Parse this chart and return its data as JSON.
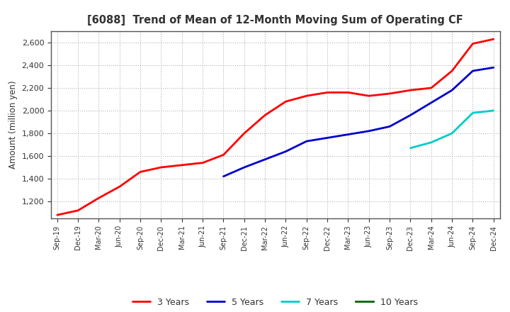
{
  "title": "[6088]  Trend of Mean of 12-Month Moving Sum of Operating CF",
  "ylabel": "Amount (million yen)",
  "background_color": "#ffffff",
  "grid_color": "#888888",
  "series": {
    "3 Years": {
      "color": "#ff0000",
      "x": [
        "Sep-19",
        "Dec-19",
        "Mar-20",
        "Jun-20",
        "Sep-20",
        "Dec-20",
        "Mar-21",
        "Jun-21",
        "Sep-21",
        "Dec-21",
        "Mar-22",
        "Jun-22",
        "Sep-22",
        "Dec-22",
        "Mar-23",
        "Jun-23",
        "Sep-23",
        "Dec-23",
        "Mar-24",
        "Jun-24",
        "Sep-24",
        "Dec-24"
      ],
      "y": [
        1080,
        1120,
        1230,
        1330,
        1460,
        1500,
        1520,
        1540,
        1610,
        1800,
        1960,
        2080,
        2130,
        2160,
        2160,
        2130,
        2150,
        2180,
        2200,
        2350,
        2590,
        2630
      ]
    },
    "5 Years": {
      "color": "#0000cc",
      "x": [
        "Sep-21",
        "Dec-21",
        "Mar-22",
        "Jun-22",
        "Sep-22",
        "Dec-22",
        "Mar-23",
        "Jun-23",
        "Sep-23",
        "Dec-23",
        "Mar-24",
        "Jun-24",
        "Sep-24",
        "Dec-24"
      ],
      "y": [
        1420,
        1500,
        1570,
        1640,
        1730,
        1760,
        1790,
        1820,
        1860,
        1960,
        2070,
        2180,
        2350,
        2380
      ]
    },
    "7 Years": {
      "color": "#00cccc",
      "x": [
        "Dec-23",
        "Mar-24",
        "Jun-24",
        "Sep-24",
        "Dec-24"
      ],
      "y": [
        1670,
        1720,
        1800,
        1980,
        2000
      ]
    },
    "10 Years": {
      "color": "#006400",
      "x": [],
      "y": []
    }
  },
  "x_labels": [
    "Sep-19",
    "Dec-19",
    "Mar-20",
    "Jun-20",
    "Sep-20",
    "Dec-20",
    "Mar-21",
    "Jun-21",
    "Sep-21",
    "Dec-21",
    "Mar-22",
    "Jun-22",
    "Sep-22",
    "Dec-22",
    "Mar-23",
    "Jun-23",
    "Sep-23",
    "Dec-23",
    "Mar-24",
    "Jun-24",
    "Sep-24",
    "Dec-24"
  ],
  "ylim": [
    1050,
    2700
  ],
  "yticks": [
    1200,
    1400,
    1600,
    1800,
    2000,
    2200,
    2400,
    2600
  ],
  "title_color": "#333333",
  "tick_color": "#333333",
  "linewidth": 2.0
}
